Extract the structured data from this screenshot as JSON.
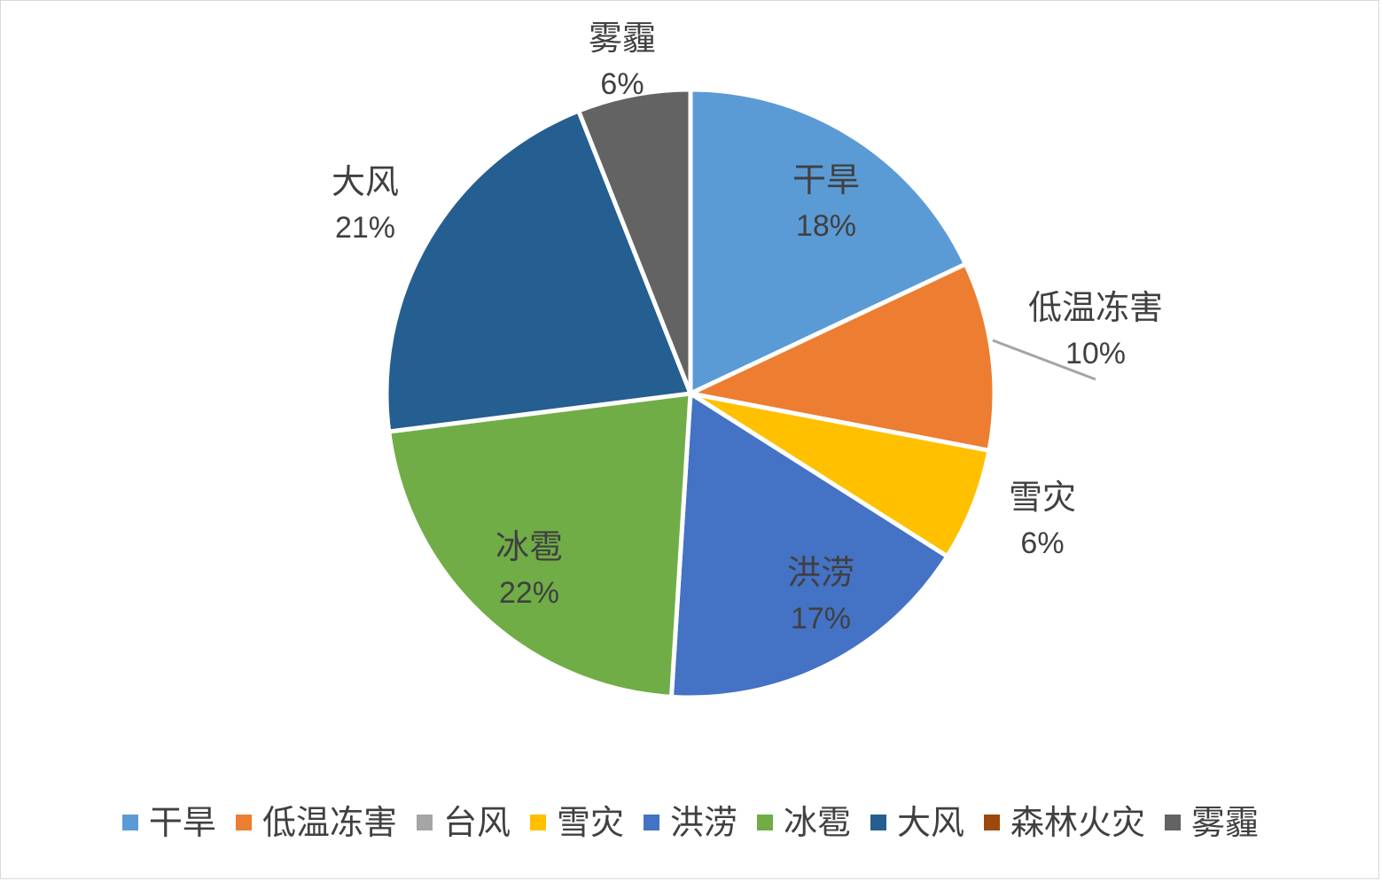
{
  "chart_data": {
    "type": "pie",
    "slices": [
      {
        "label": "干旱",
        "value": 18,
        "pct_label": "18%",
        "color": "#5b9bd5"
      },
      {
        "label": "低温冻害",
        "value": 10,
        "pct_label": "10%",
        "color": "#ed7d31"
      },
      {
        "label": "台风",
        "value": 0,
        "pct_label": "",
        "color": "#a5a5a5"
      },
      {
        "label": "雪灾",
        "value": 6,
        "pct_label": "6%",
        "color": "#ffc000"
      },
      {
        "label": "洪涝",
        "value": 17,
        "pct_label": "17%",
        "color": "#4472c4"
      },
      {
        "label": "冰雹",
        "value": 22,
        "pct_label": "22%",
        "color": "#70ad47"
      },
      {
        "label": "大风",
        "value": 21,
        "pct_label": "21%",
        "color": "#255e91"
      },
      {
        "label": "森林火灾",
        "value": 0,
        "pct_label": "",
        "color": "#9e480e"
      },
      {
        "label": "雾霾",
        "value": 6,
        "pct_label": "6%",
        "color": "#636363"
      }
    ],
    "legend_position": "bottom",
    "title": ""
  }
}
